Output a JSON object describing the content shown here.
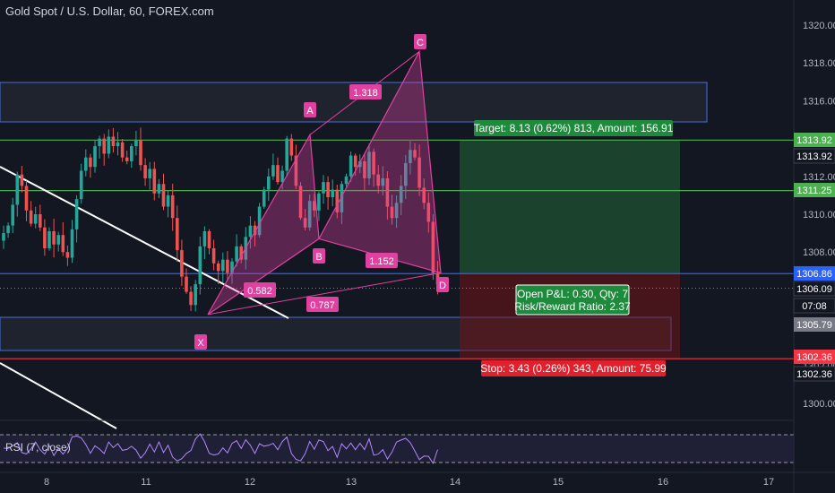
{
  "header": {
    "title": "Gold Spot / U.S. Dollar, 60, FOREX.com"
  },
  "colors": {
    "background": "#131722",
    "up": "#26a69a",
    "down": "#ef5350",
    "pattern": "#e040a0",
    "target": "#4caf50",
    "stop": "#f23645",
    "level_blue": "#2962ff"
  },
  "price_axis": {
    "ticks": [
      "1320.00",
      "1318.00",
      "1316.00",
      "1314.00",
      "1312.00",
      "1310.00",
      "1308.00",
      "1306.00",
      "1304.00",
      "1302.00",
      "1300.00"
    ]
  },
  "time_axis": {
    "ticks": [
      "8",
      "11",
      "12",
      "13",
      "14",
      "15",
      "16",
      "17"
    ]
  },
  "price_labels": [
    {
      "text": "1313.92",
      "style": "green"
    },
    {
      "text": "1313.92",
      "style": "dark"
    },
    {
      "text": "1311.25",
      "style": "green"
    },
    {
      "text": "1306.86",
      "style": "blue"
    },
    {
      "text": "1306.09",
      "style": "dark"
    },
    {
      "text": "07:08",
      "style": "dark"
    },
    {
      "text": "1305.79",
      "style": "gray"
    },
    {
      "text": "1302.36",
      "style": "red"
    },
    {
      "text": "1302.36",
      "style": "dark"
    }
  ],
  "pattern": {
    "points": [
      "X",
      "A",
      "B",
      "C",
      "D"
    ],
    "ratios": [
      "1.318",
      "0.582",
      "1.152",
      "0.787"
    ]
  },
  "position": {
    "target_label": "Target: 8.13 (0.62%) 813, Amount: 156.91",
    "stop_label": "Stop: 3.43 (0.26%) 343, Amount: 75.99",
    "pnl_line1": "Open P&L: 0.30, Qty: 7",
    "pnl_line2": "Risk/Reward Ratio: 2.37"
  },
  "rsi": {
    "label": "RSI (7, close)"
  },
  "chart_data": {
    "type": "candlestick",
    "title": "Gold Spot / U.S. Dollar, 60, FOREX.com",
    "y_range": [
      1298.9,
      1321.0
    ],
    "x_ticks": [
      "8",
      "11",
      "12",
      "13",
      "14",
      "15",
      "16",
      "17"
    ],
    "key_prices": {
      "target": 1313.92,
      "entry": 1306.86,
      "stop": 1302.36,
      "current": 1306.09,
      "level_2": 1311.25,
      "level_3": 1305.79
    },
    "harmonic_pattern": {
      "X": 1304.7,
      "A": 1314.2,
      "B": 1308.7,
      "C": 1318.6,
      "D": 1306.9
    },
    "close_path": [
      1309.0,
      1309.4,
      1310.5,
      1312.1,
      1311.5,
      1310.2,
      1309.5,
      1310.0,
      1309.3,
      1308.2,
      1309.1,
      1308.4,
      1308.9,
      1308.0,
      1307.7,
      1309.2,
      1310.8,
      1312.3,
      1313.0,
      1312.5,
      1313.6,
      1314.0,
      1313.2,
      1314.1,
      1313.6,
      1313.8,
      1313.0,
      1312.8,
      1313.6,
      1313.9,
      1312.6,
      1311.9,
      1312.4,
      1311.1,
      1311.6,
      1310.4,
      1311.0,
      1309.8,
      1308.1,
      1306.7,
      1305.9,
      1305.2,
      1306.3,
      1308.3,
      1309.1,
      1308.2,
      1307.4,
      1307.0,
      1307.6,
      1306.9,
      1307.5,
      1308.3,
      1307.6,
      1308.8,
      1309.4,
      1308.9,
      1310.4,
      1311.3,
      1312.0,
      1312.6,
      1311.7,
      1312.3,
      1314.0,
      1313.1,
      1311.5,
      1309.8,
      1309.3,
      1310.7,
      1310.2,
      1311.1,
      1311.7,
      1310.9,
      1311.3,
      1310.1,
      1311.6,
      1312.0,
      1313.1,
      1312.5,
      1312.8,
      1311.9,
      1313.3,
      1312.1,
      1311.5,
      1311.9,
      1310.4,
      1309.8,
      1310.6,
      1311.5,
      1312.7,
      1313.4,
      1313.0,
      1311.4,
      1310.6,
      1309.6,
      1306.9,
      1306.3
    ]
  }
}
